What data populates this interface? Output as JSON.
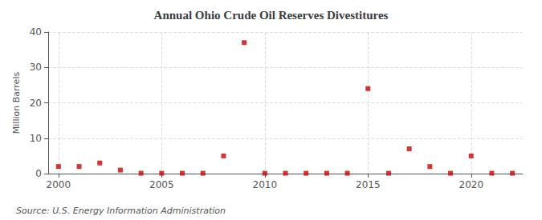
{
  "chart_data": {
    "type": "scatter",
    "title": "Annual Ohio Crude Oil Reserves Divestitures",
    "ylabel": "Million Barrels",
    "annotations": [
      "Source: U.S. Energy Information Administration"
    ],
    "x": [
      2000,
      2001,
      2002,
      2003,
      2004,
      2005,
      2006,
      2007,
      2008,
      2009,
      2010,
      2011,
      2012,
      2013,
      2014,
      2015,
      2016,
      2017,
      2018,
      2019,
      2020,
      2021,
      2022
    ],
    "values": [
      2.0,
      2.0,
      3.0,
      1.0,
      0.1,
      0.1,
      0.1,
      0.1,
      5.0,
      37.0,
      0.1,
      0.1,
      0.1,
      0.1,
      0.1,
      24.0,
      0.1,
      7.0,
      2.0,
      0.1,
      5.0,
      0.1,
      0.1
    ],
    "color": "#cc0000",
    "marker": "square",
    "xlim": [
      1999.5,
      2022.5
    ],
    "xticks": [
      2000,
      2005,
      2010,
      2015,
      2020
    ],
    "ylim": [
      0,
      40
    ],
    "yticks": [
      0,
      10,
      20,
      30,
      40
    ],
    "grid": true
  }
}
